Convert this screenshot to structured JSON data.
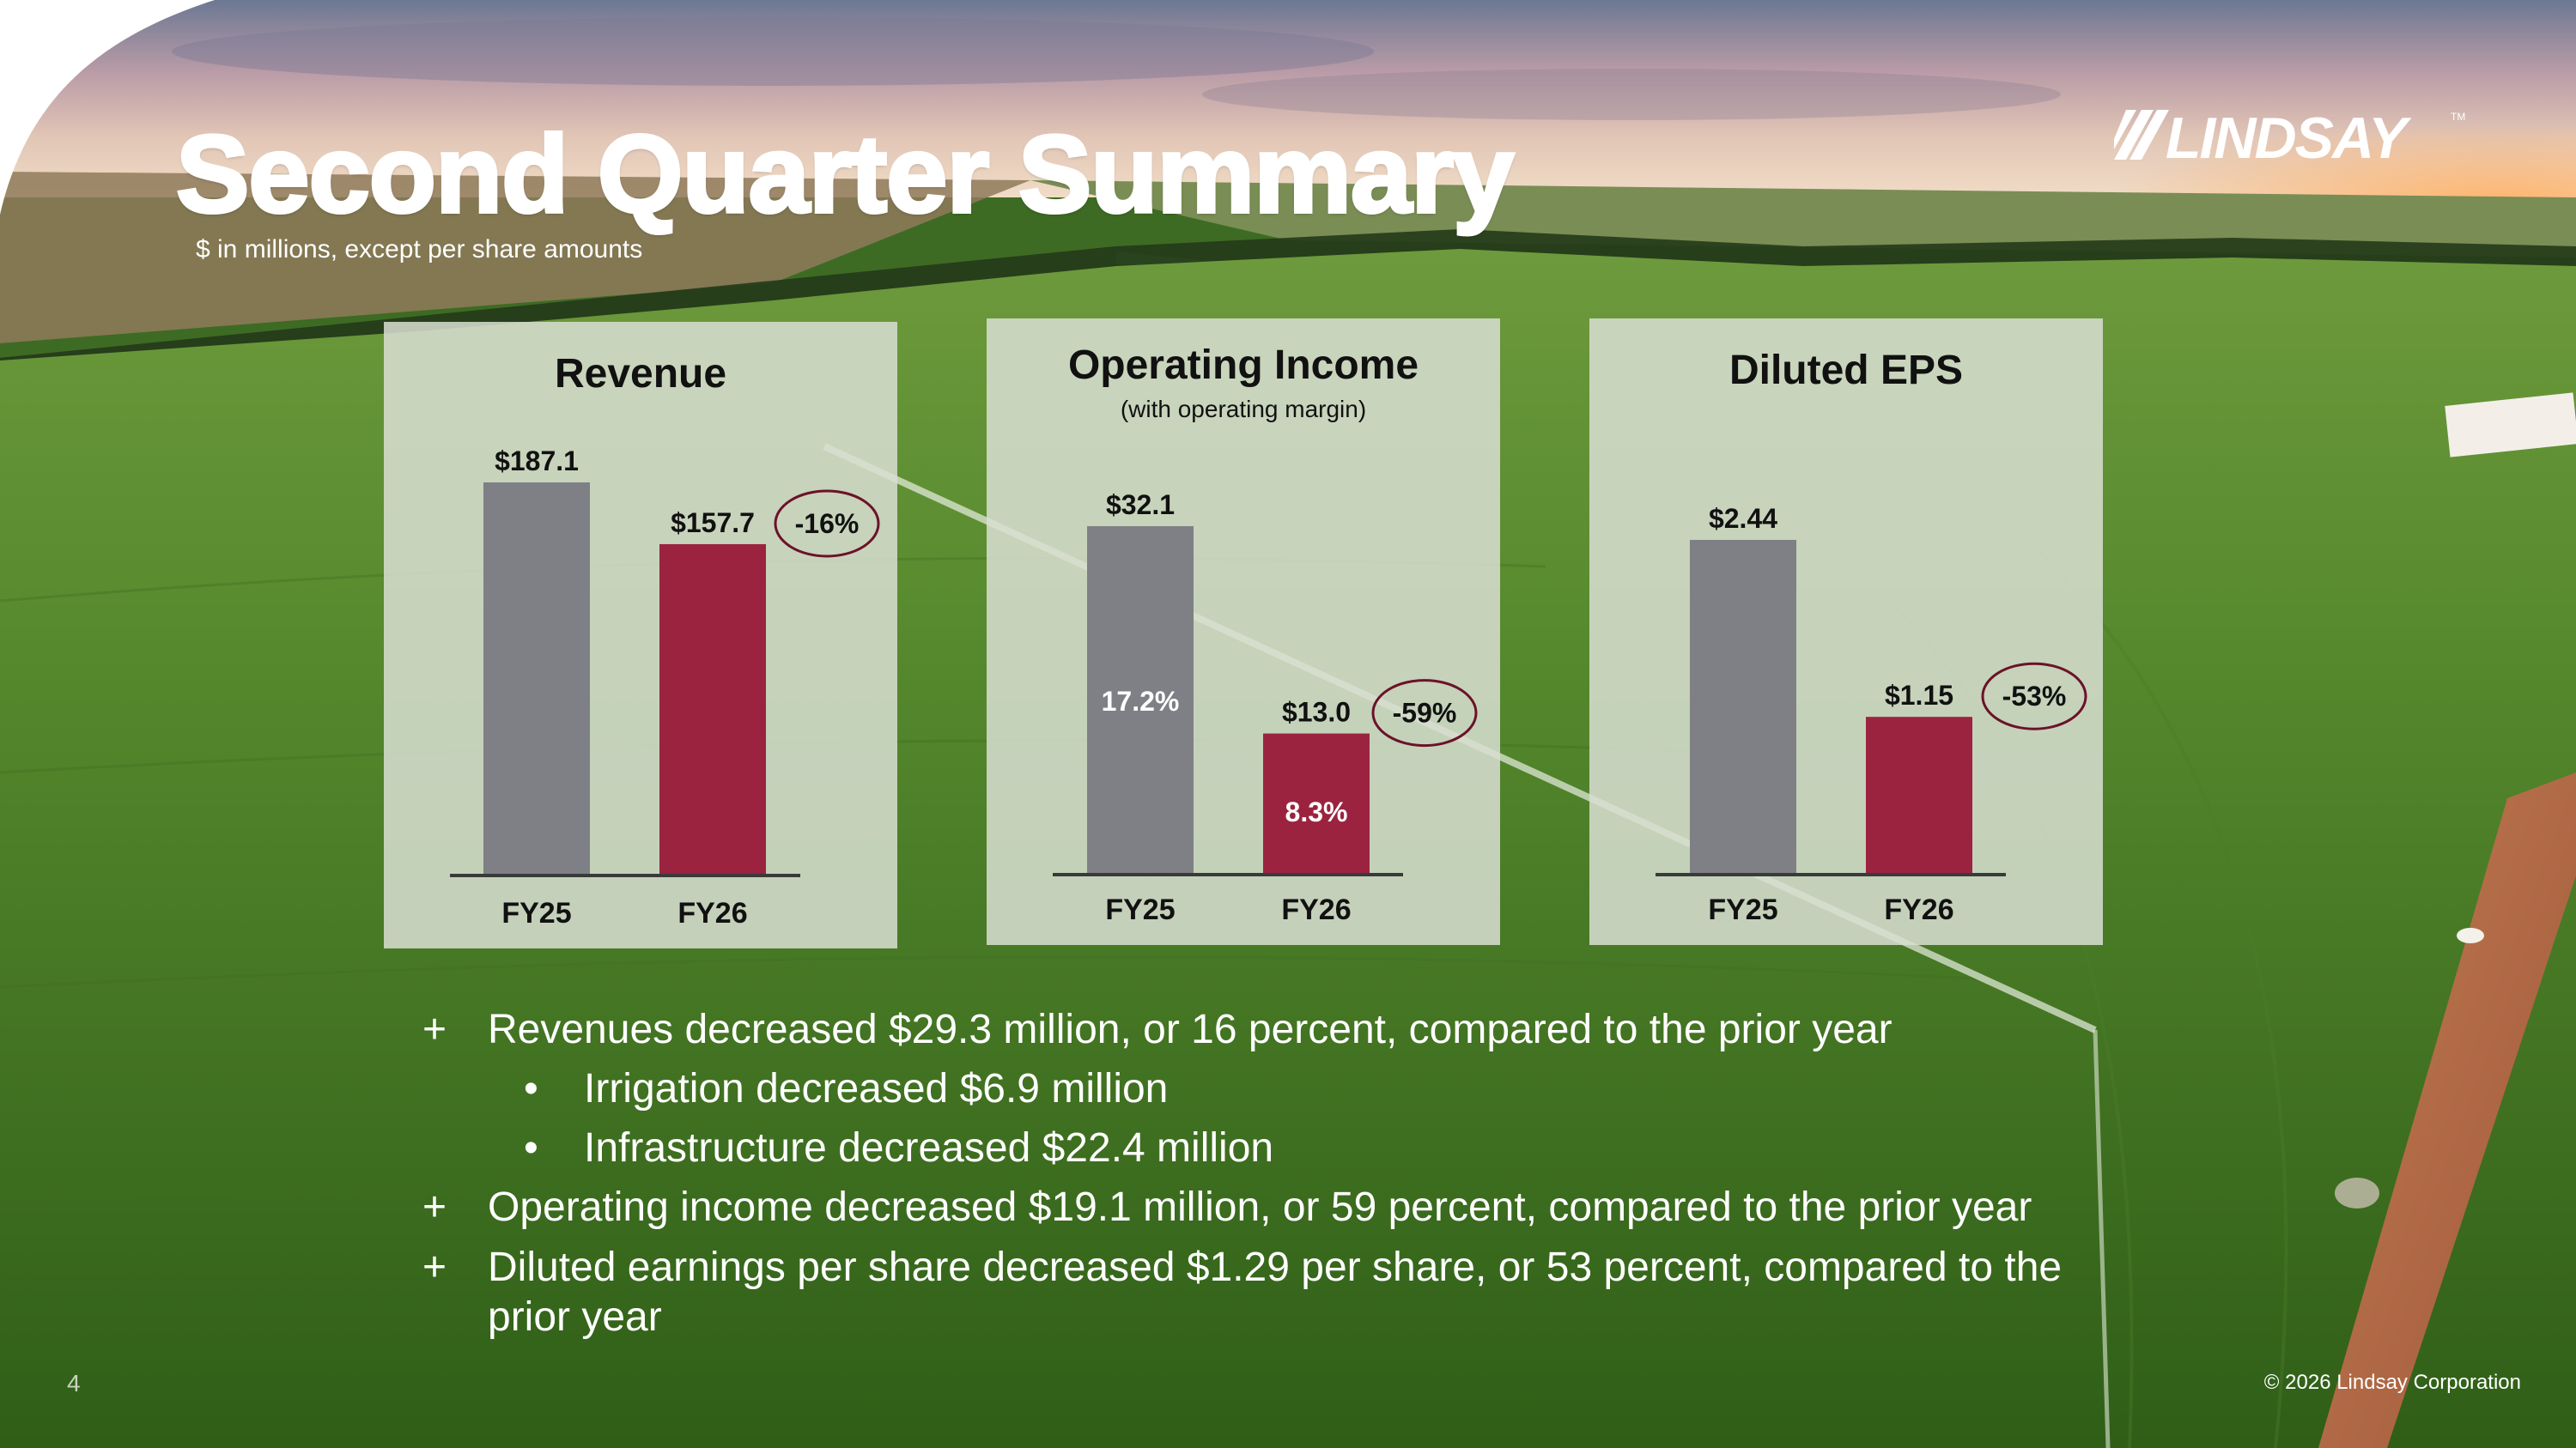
{
  "slide": {
    "title": "Second Quarter Summary",
    "subtitle": "$ in millions, except per share amounts",
    "logo_text": "LINDSAY",
    "page_number": "4",
    "copyright": "© 2026 Lindsay Corporation"
  },
  "colors": {
    "prior_year_bar": "#7f8085",
    "current_year_bar": "#9b2340",
    "callout_ring": "#6b1228",
    "panel_bg": "rgba(216,222,210,0.86)"
  },
  "chart_data": [
    {
      "type": "bar",
      "title": "Revenue",
      "subtitle": "",
      "categories": [
        "FY25",
        "FY26"
      ],
      "values": [
        187.1,
        157.7
      ],
      "value_labels": [
        "$187.1",
        "$157.7"
      ],
      "inner_labels": [
        "",
        ""
      ],
      "change_label": "-16%",
      "ylim": [
        0,
        187.1
      ]
    },
    {
      "type": "bar",
      "title": "Operating Income",
      "subtitle": "(with operating margin)",
      "categories": [
        "FY25",
        "FY26"
      ],
      "values": [
        32.1,
        13.0
      ],
      "value_labels": [
        "$32.1",
        "$13.0"
      ],
      "inner_labels": [
        "17.2%",
        "8.3%"
      ],
      "change_label": "-59%",
      "ylim": [
        0,
        32.1
      ]
    },
    {
      "type": "bar",
      "title": "Diluted EPS",
      "subtitle": "",
      "categories": [
        "FY25",
        "FY26"
      ],
      "values": [
        2.44,
        1.15
      ],
      "value_labels": [
        "$2.44",
        "$1.15"
      ],
      "inner_labels": [
        "",
        ""
      ],
      "change_label": "-53%",
      "ylim": [
        0,
        2.44
      ]
    }
  ],
  "bullets": [
    {
      "marker": "+",
      "text": "Revenues decreased $29.3 million, or 16 percent, compared to the prior year"
    },
    {
      "marker": "•",
      "text": "Irrigation decreased $6.9 million"
    },
    {
      "marker": "•",
      "text": "Infrastructure decreased $22.4 million"
    },
    {
      "marker": "+",
      "text": "Operating income decreased $19.1 million, or 59 percent, compared to the prior year"
    },
    {
      "marker": "+",
      "text": "Diluted earnings per share decreased $1.29 per share, or 53 percent, compared to the"
    },
    {
      "marker": "",
      "text": "prior year"
    }
  ]
}
